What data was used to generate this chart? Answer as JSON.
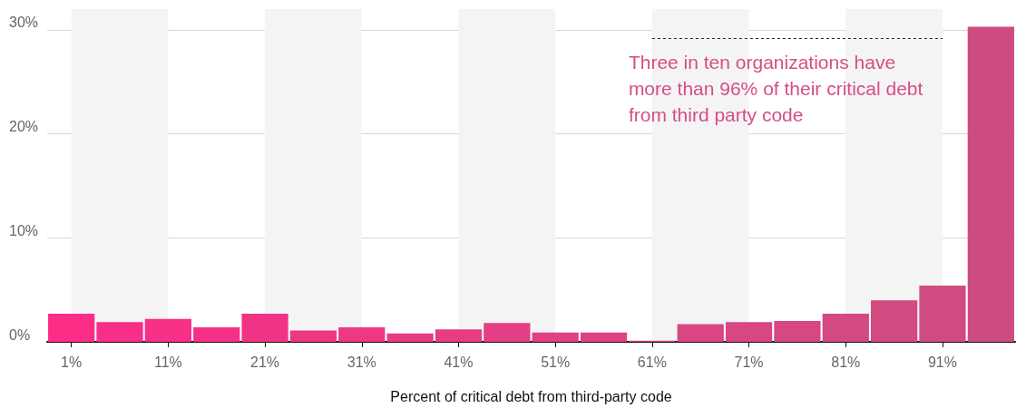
{
  "chart_data": {
    "type": "bar",
    "xlabel": "Percent of critical debt from third-party code",
    "categories": [
      "1%",
      null,
      "11%",
      null,
      "21%",
      null,
      "31%",
      null,
      "41%",
      null,
      "51%",
      null,
      "61%",
      null,
      "71%",
      null,
      "81%",
      null,
      "91%",
      null
    ],
    "values": [
      2.7,
      1.9,
      2.2,
      1.4,
      2.7,
      1.1,
      1.4,
      0.8,
      1.2,
      1.8,
      0.9,
      0.9,
      0.1,
      1.7,
      1.9,
      2.0,
      2.7,
      4.0,
      5.4,
      30.3
    ],
    "colors": [
      "#fc2c87",
      "#f92e87",
      "#f72f86",
      "#f43186",
      "#f03485",
      "#ee3685",
      "#ec3885",
      "#e93a85",
      "#e73c84",
      "#e43e84",
      "#e24083",
      "#df4183",
      "#dc4382",
      "#da4582",
      "#d84782",
      "#d64881",
      "#d34981",
      "#d14a80",
      "#cf4b80",
      "#cc4c80"
    ],
    "ylim": [
      0,
      32
    ],
    "yticks": [
      {
        "value": 0,
        "label": "0%"
      },
      {
        "value": 10,
        "label": "10%"
      },
      {
        "value": 20,
        "label": "20%"
      },
      {
        "value": 30,
        "label": "30%"
      }
    ],
    "grid": "y",
    "bands": [
      {
        "axis": "x",
        "from": "1%",
        "to": "11%",
        "color": "#f4f4f4"
      },
      {
        "axis": "x",
        "from": "21%",
        "to": "31%",
        "color": "#f4f4f4"
      },
      {
        "axis": "x",
        "from": "41%",
        "to": "51%",
        "color": "#f4f4f4"
      },
      {
        "axis": "x",
        "from": "61%",
        "to": "71%",
        "color": "#f4f4f4"
      },
      {
        "axis": "x",
        "from": "81%",
        "to": "91%",
        "color": "#f4f4f4"
      }
    ],
    "ref_lines": [
      {
        "axis": "y",
        "value": 29.2,
        "label": "Three in ten organizations have more than 96% of their critical debt from third party code",
        "line_style": "dotted",
        "color": "#222222"
      }
    ]
  }
}
